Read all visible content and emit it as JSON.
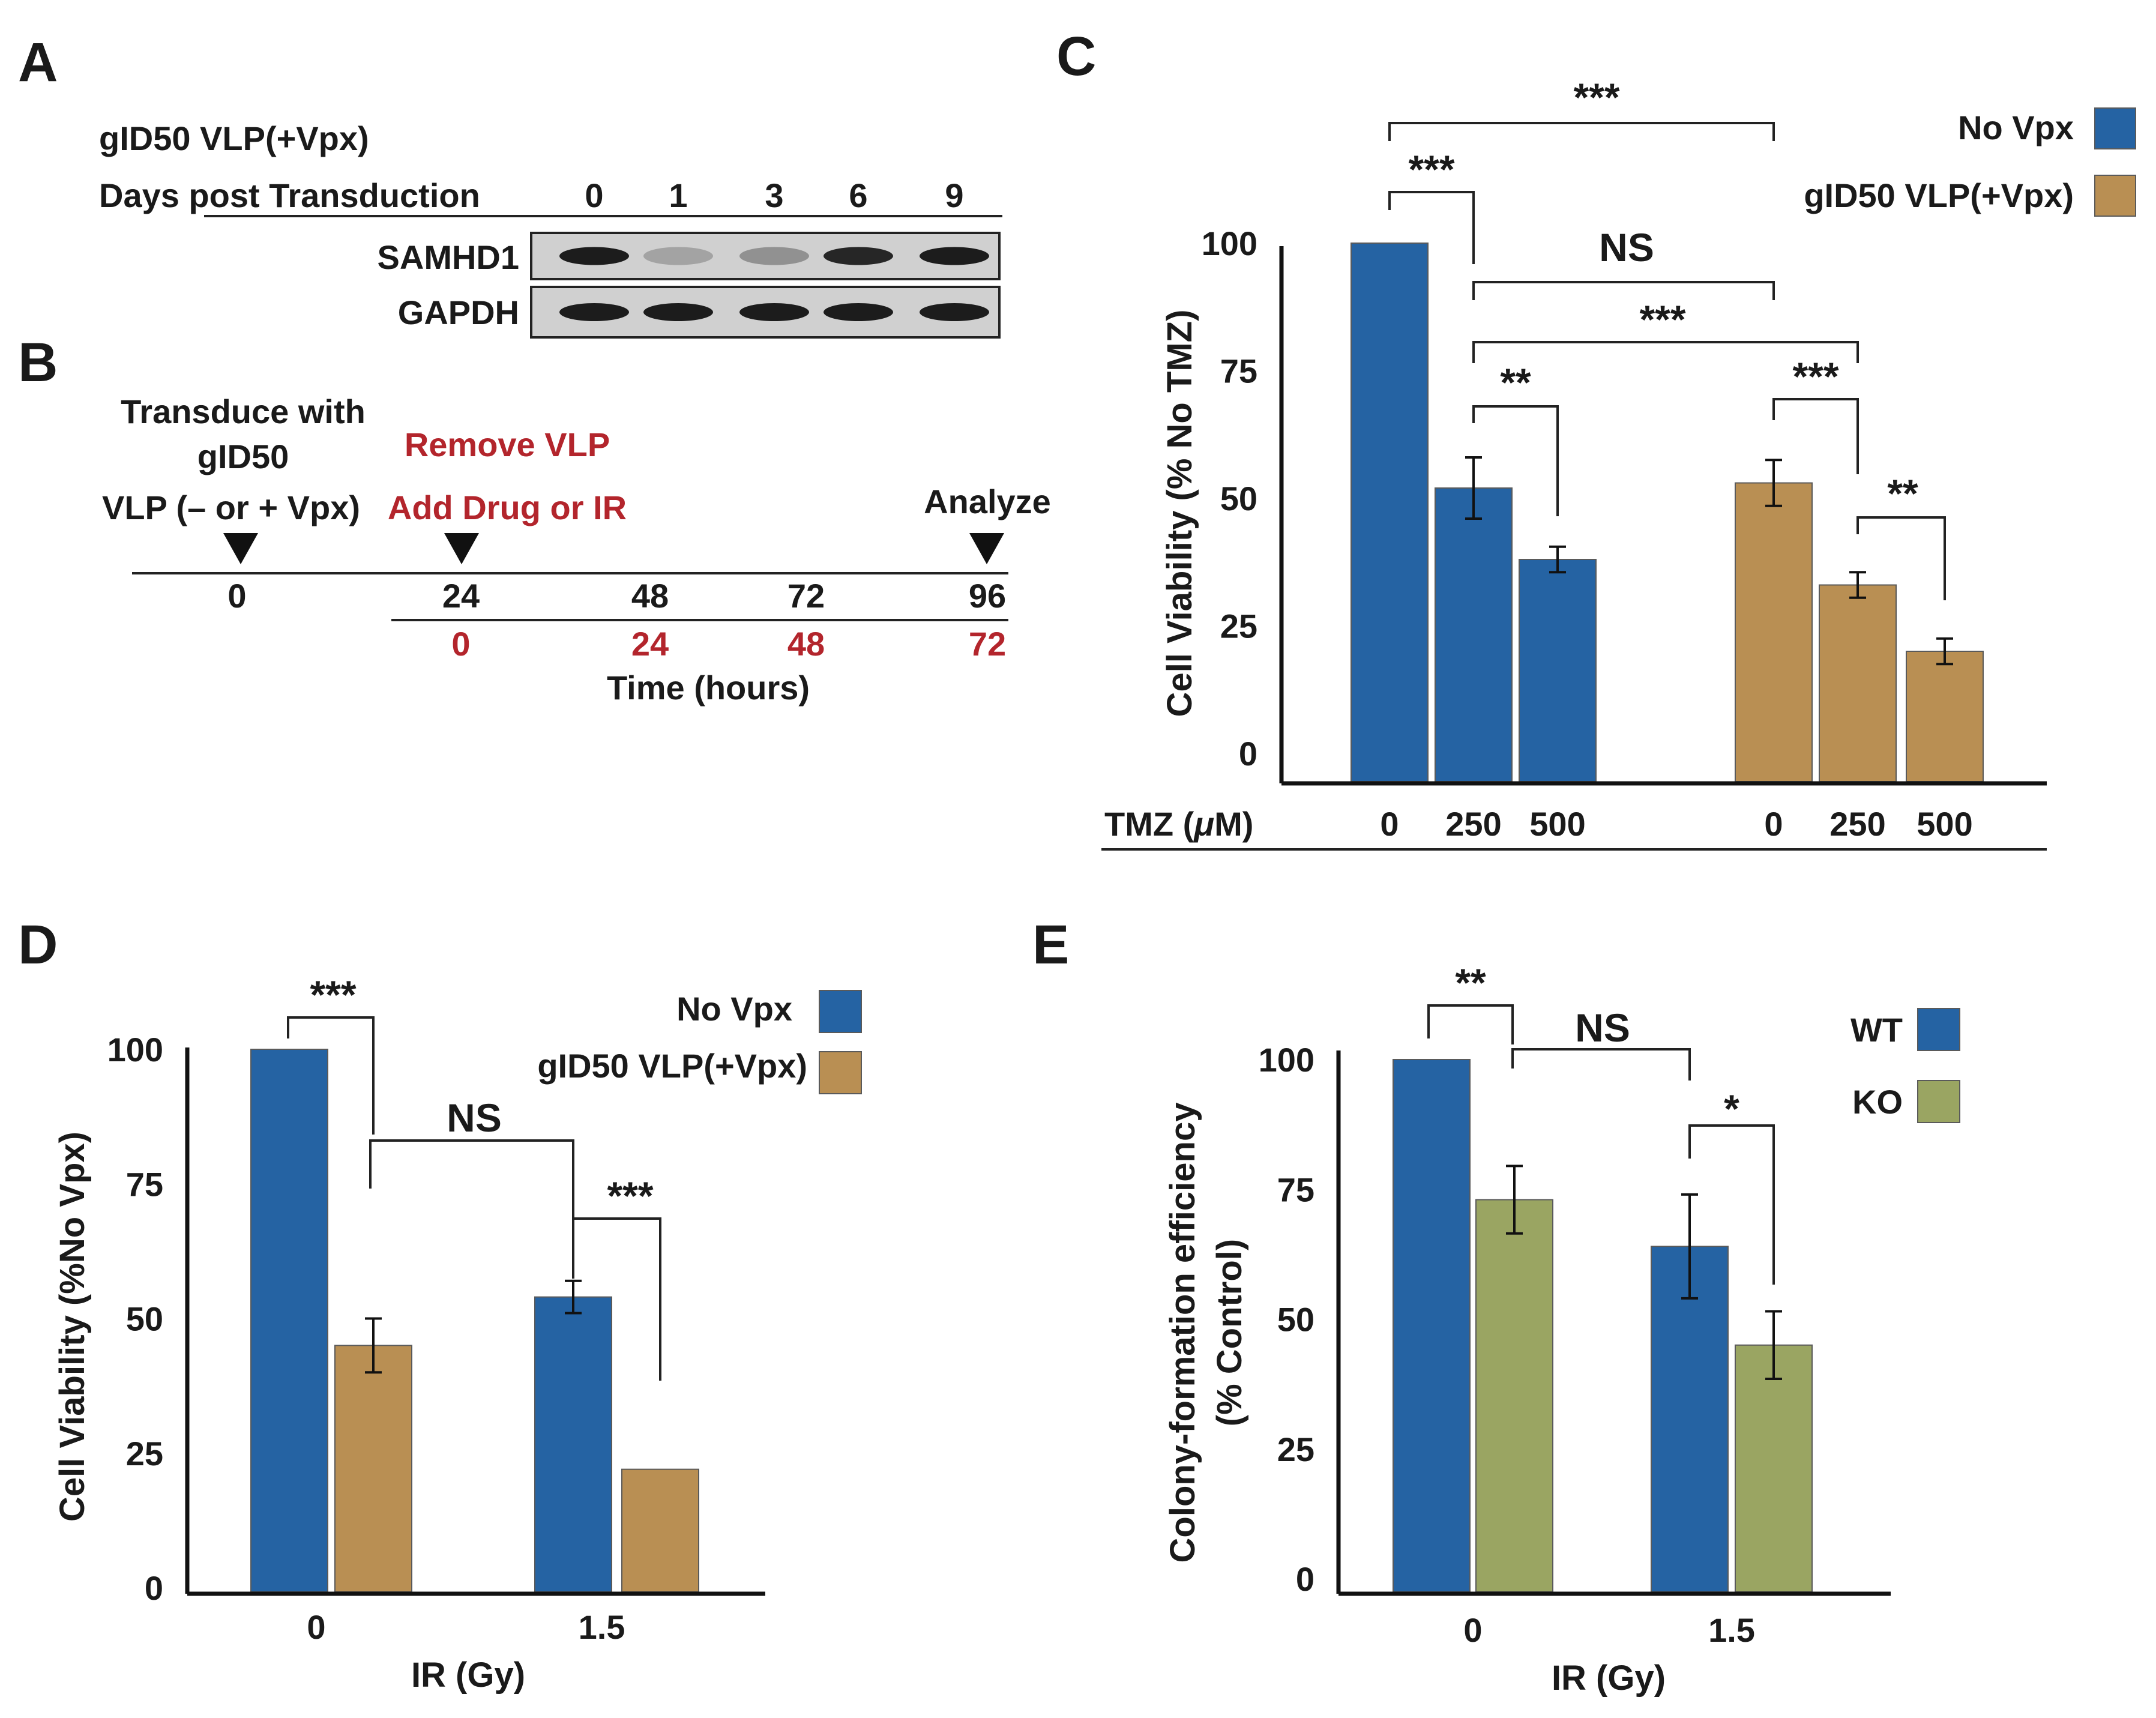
{
  "colors": {
    "blue": "#2563a3",
    "tan": "#b98f53",
    "green": "#9aa562",
    "red_text": "#b3252c",
    "blot_bg": "#d0d0d0",
    "band": "#1c1c1c"
  },
  "panel_a": {
    "letter": "A",
    "vlp_label": "gID50 VLP(+Vpx)",
    "days_label": "Days post Transduction",
    "days": [
      "0",
      "1",
      "3",
      "6",
      "9"
    ],
    "rows": [
      {
        "name": "SAMHD1",
        "band_intensity": [
          1.0,
          0.25,
          0.35,
          0.95,
          1.0
        ]
      },
      {
        "name": "GAPDH",
        "band_intensity": [
          1.0,
          1.0,
          1.0,
          1.0,
          1.0
        ]
      }
    ]
  },
  "panel_b": {
    "letter": "B",
    "transduce_lines": [
      "Transduce with",
      "gID50",
      "VLP (– or + Vpx)"
    ],
    "remove_label": "Remove VLP",
    "add_label": "Add Drug or IR",
    "analyze_label": "Analyze",
    "top_times": [
      "0",
      "24",
      "48",
      "72",
      "96"
    ],
    "bottom_times": [
      "0",
      "24",
      "48",
      "72"
    ],
    "axis_label": "Time (hours)"
  },
  "chart_data": [
    {
      "id": "C",
      "letter": "C",
      "type": "bar",
      "ylabel": "Cell Viability (% No TMZ)",
      "xlabel_prefix": "TMZ (",
      "xlabel_mu": "μ",
      "xlabel_suffix": "M)",
      "ylim": [
        0,
        105
      ],
      "yticks": [
        0,
        25,
        50,
        75,
        100
      ],
      "groups": [
        {
          "series": "No Vpx",
          "categories": [
            "0",
            "250",
            "500"
          ],
          "values": [
            100,
            52,
            38
          ],
          "errors": [
            0,
            6,
            2.5
          ]
        },
        {
          "series": "gID50 VLP(+Vpx)",
          "categories": [
            "0",
            "250",
            "500"
          ],
          "values": [
            53,
            33,
            20
          ],
          "errors": [
            4.5,
            2.5,
            2.5
          ]
        }
      ],
      "legend": [
        {
          "label": "No Vpx",
          "color": "#2563a3"
        },
        {
          "label": "gID50 VLP(+Vpx)",
          "color": "#b98f53"
        }
      ],
      "significance": [
        "***",
        "***",
        "NS",
        "***",
        "**",
        "***",
        "**"
      ]
    },
    {
      "id": "D",
      "letter": "D",
      "type": "bar",
      "ylabel": "Cell Viability (%No Vpx)",
      "xlabel": "IR (Gy)",
      "ylim": [
        0,
        100
      ],
      "yticks": [
        0,
        25,
        50,
        75,
        100
      ],
      "categories": [
        "0",
        "1.5"
      ],
      "series": [
        {
          "name": "No Vpx",
          "values": [
            100,
            54
          ],
          "errors": [
            0,
            3
          ]
        },
        {
          "name": "gID50 VLP(+Vpx)",
          "values": [
            45,
            22
          ],
          "errors": [
            5,
            0
          ]
        }
      ],
      "legend": [
        {
          "label": "No Vpx",
          "color": "#2563a3"
        },
        {
          "label": "gID50 VLP(+Vpx)",
          "color": "#b98f53"
        }
      ],
      "significance": [
        "***",
        "NS",
        "***"
      ]
    },
    {
      "id": "E",
      "letter": "E",
      "type": "bar",
      "ylabel_lines": [
        "Colony-formation efficiency",
        "(% Control)"
      ],
      "xlabel": "IR (Gy)",
      "ylim": [
        0,
        100
      ],
      "yticks": [
        0,
        25,
        50,
        75,
        100
      ],
      "categories": [
        "0",
        "1.5"
      ],
      "series": [
        {
          "name": "WT",
          "values": [
            100,
            64
          ],
          "errors": [
            0,
            10
          ]
        },
        {
          "name": "KO",
          "values": [
            73,
            45
          ],
          "errors": [
            6.5,
            6.5
          ]
        }
      ],
      "legend": [
        {
          "label": "WT",
          "color": "#2563a3"
        },
        {
          "label": "KO",
          "color": "#9aa562"
        }
      ],
      "significance": [
        "**",
        "NS",
        "*"
      ]
    }
  ]
}
